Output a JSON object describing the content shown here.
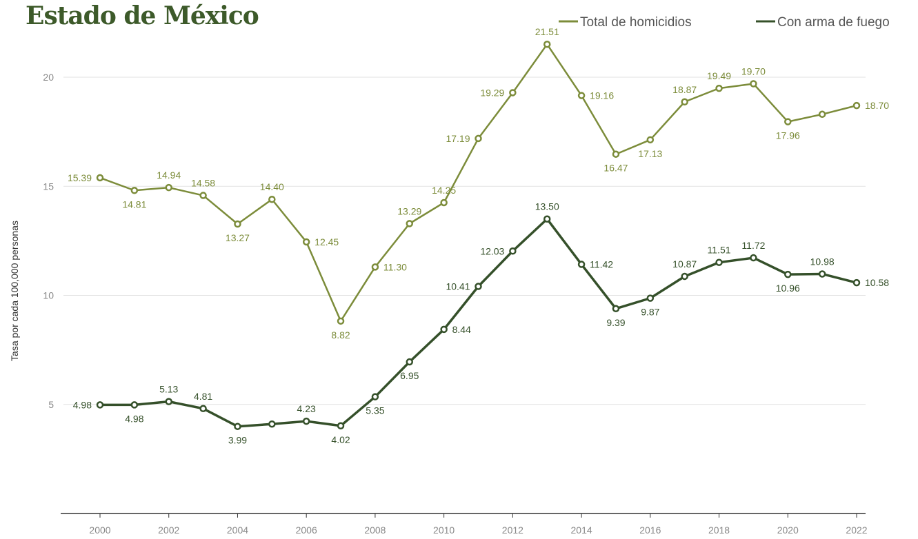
{
  "title": "Estado de México",
  "chart_data": {
    "type": "line",
    "title": "Estado de México",
    "xlabel": "",
    "ylabel": "Tasa por cada 100,000 personas",
    "x": [
      2000,
      2001,
      2002,
      2003,
      2004,
      2005,
      2006,
      2007,
      2008,
      2009,
      2010,
      2011,
      2012,
      2013,
      2014,
      2015,
      2016,
      2017,
      2018,
      2019,
      2020,
      2021,
      2022
    ],
    "xticks": [
      "2000",
      "2002",
      "2004",
      "2006",
      "2008",
      "2010",
      "2012",
      "2014",
      "2016",
      "2018",
      "2020",
      "2022"
    ],
    "yticks": [
      "5",
      "10",
      "15",
      "20"
    ],
    "ylim": [
      0,
      23
    ],
    "grid": "horizontal",
    "legend_position": "top-right",
    "series": [
      {
        "name": "Total de homicidios",
        "color": "#7c8c3a",
        "values": [
          15.39,
          14.81,
          14.94,
          14.58,
          13.27,
          14.4,
          12.45,
          8.82,
          11.3,
          13.29,
          14.25,
          17.19,
          19.29,
          21.51,
          19.16,
          16.47,
          17.13,
          18.87,
          19.49,
          19.7,
          17.96,
          18.3,
          18.7
        ],
        "labels": [
          "15.39",
          "14.81",
          "14.94",
          "14.58",
          "13.27",
          "14.40",
          "12.45",
          "8.82",
          "11.30",
          "13.29",
          "14.25",
          "17.19",
          "19.29",
          "21.51",
          "19.16",
          "16.47",
          "17.13",
          "18.87",
          "19.49",
          "19.70",
          "17.96",
          "",
          "18.70"
        ]
      },
      {
        "name": "Con arma de fuego",
        "color": "#35502a",
        "values": [
          4.98,
          4.98,
          5.13,
          4.81,
          3.99,
          4.1,
          4.23,
          4.02,
          5.35,
          6.95,
          8.44,
          10.41,
          12.03,
          13.5,
          11.42,
          9.39,
          9.87,
          10.87,
          11.51,
          11.72,
          10.96,
          10.98,
          10.58
        ],
        "labels": [
          "4.98",
          "4.98",
          "5.13",
          "4.81",
          "3.99",
          "",
          "4.23",
          "4.02",
          "5.35",
          "6.95",
          "8.44",
          "10.41",
          "12.03",
          "13.50",
          "11.42",
          "9.39",
          "9.87",
          "10.87",
          "11.51",
          "11.72",
          "10.96",
          "10.98",
          "10.58"
        ]
      }
    ]
  }
}
